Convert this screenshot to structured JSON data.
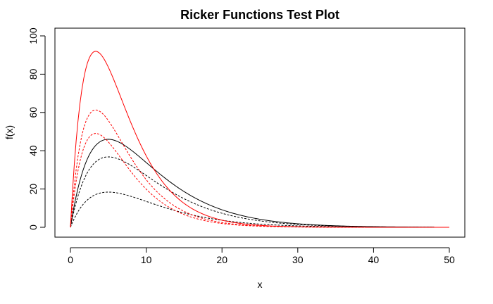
{
  "chart_data": {
    "type": "line",
    "title": "Ricker Functions Test Plot",
    "xlabel": "x",
    "ylabel": "f(x)",
    "xlim": [
      0,
      50
    ],
    "ylim": [
      0,
      100
    ],
    "xticks": [
      0,
      10,
      20,
      30,
      40,
      50
    ],
    "yticks": [
      0,
      20,
      40,
      60,
      80,
      100
    ],
    "grid": false,
    "series": [
      {
        "a": 25,
        "b": 0.2,
        "xmax": 48,
        "color": "#000000",
        "dash": ""
      },
      {
        "a": 20,
        "b": 0.2,
        "xmax": 48,
        "color": "#000000",
        "dash": "3,2"
      },
      {
        "a": 10,
        "b": 0.2,
        "xmax": 48,
        "color": "#000000",
        "dash": "3,2"
      },
      {
        "a": 75,
        "b": 0.3,
        "xmax": 50,
        "color": "#ff0000",
        "dash": ""
      },
      {
        "a": 50,
        "b": 0.3,
        "xmax": 50,
        "color": "#ff0000",
        "dash": "3,2"
      },
      {
        "a": 40,
        "b": 0.3,
        "xmax": 50,
        "color": "#ff0000",
        "dash": "3,2"
      }
    ]
  }
}
